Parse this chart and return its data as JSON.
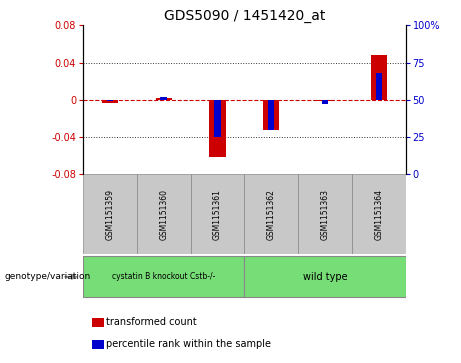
{
  "title": "GDS5090 / 1451420_at",
  "samples": [
    "GSM1151359",
    "GSM1151360",
    "GSM1151361",
    "GSM1151362",
    "GSM1151363",
    "GSM1151364"
  ],
  "red_values": [
    -0.003,
    0.002,
    -0.062,
    -0.032,
    -0.001,
    0.048
  ],
  "blue_values_raw": [
    49,
    52,
    25,
    30,
    47,
    68
  ],
  "ylim_left": [
    -0.08,
    0.08
  ],
  "ylim_right": [
    0,
    100
  ],
  "yticks_left": [
    -0.08,
    -0.04,
    0,
    0.04,
    0.08
  ],
  "yticks_right": [
    0,
    25,
    50,
    75,
    100
  ],
  "ytick_labels_left": [
    "-0.08",
    "-0.04",
    "0",
    "0.04",
    "0.08"
  ],
  "ytick_labels_right": [
    "0",
    "25",
    "50",
    "75",
    "100%"
  ],
  "group1_label": "cystatin B knockout Cstb-/-",
  "group2_label": "wild type",
  "group_color": "#77DD77",
  "group_row_label": "genotype/variation",
  "legend_red": "transformed count",
  "legend_blue": "percentile rank within the sample",
  "red_color": "#CC0000",
  "blue_color": "#0000CC",
  "red_bar_width": 0.3,
  "blue_bar_width": 0.12,
  "zero_line_color": "#CC0000",
  "dotted_color": "#333333",
  "bg_plot": "white",
  "bg_sample_box": "#C8C8C8",
  "title_fontsize": 10,
  "tick_fontsize": 7,
  "sample_fontsize": 5.5,
  "group_fontsize": 7,
  "legend_fontsize": 7
}
